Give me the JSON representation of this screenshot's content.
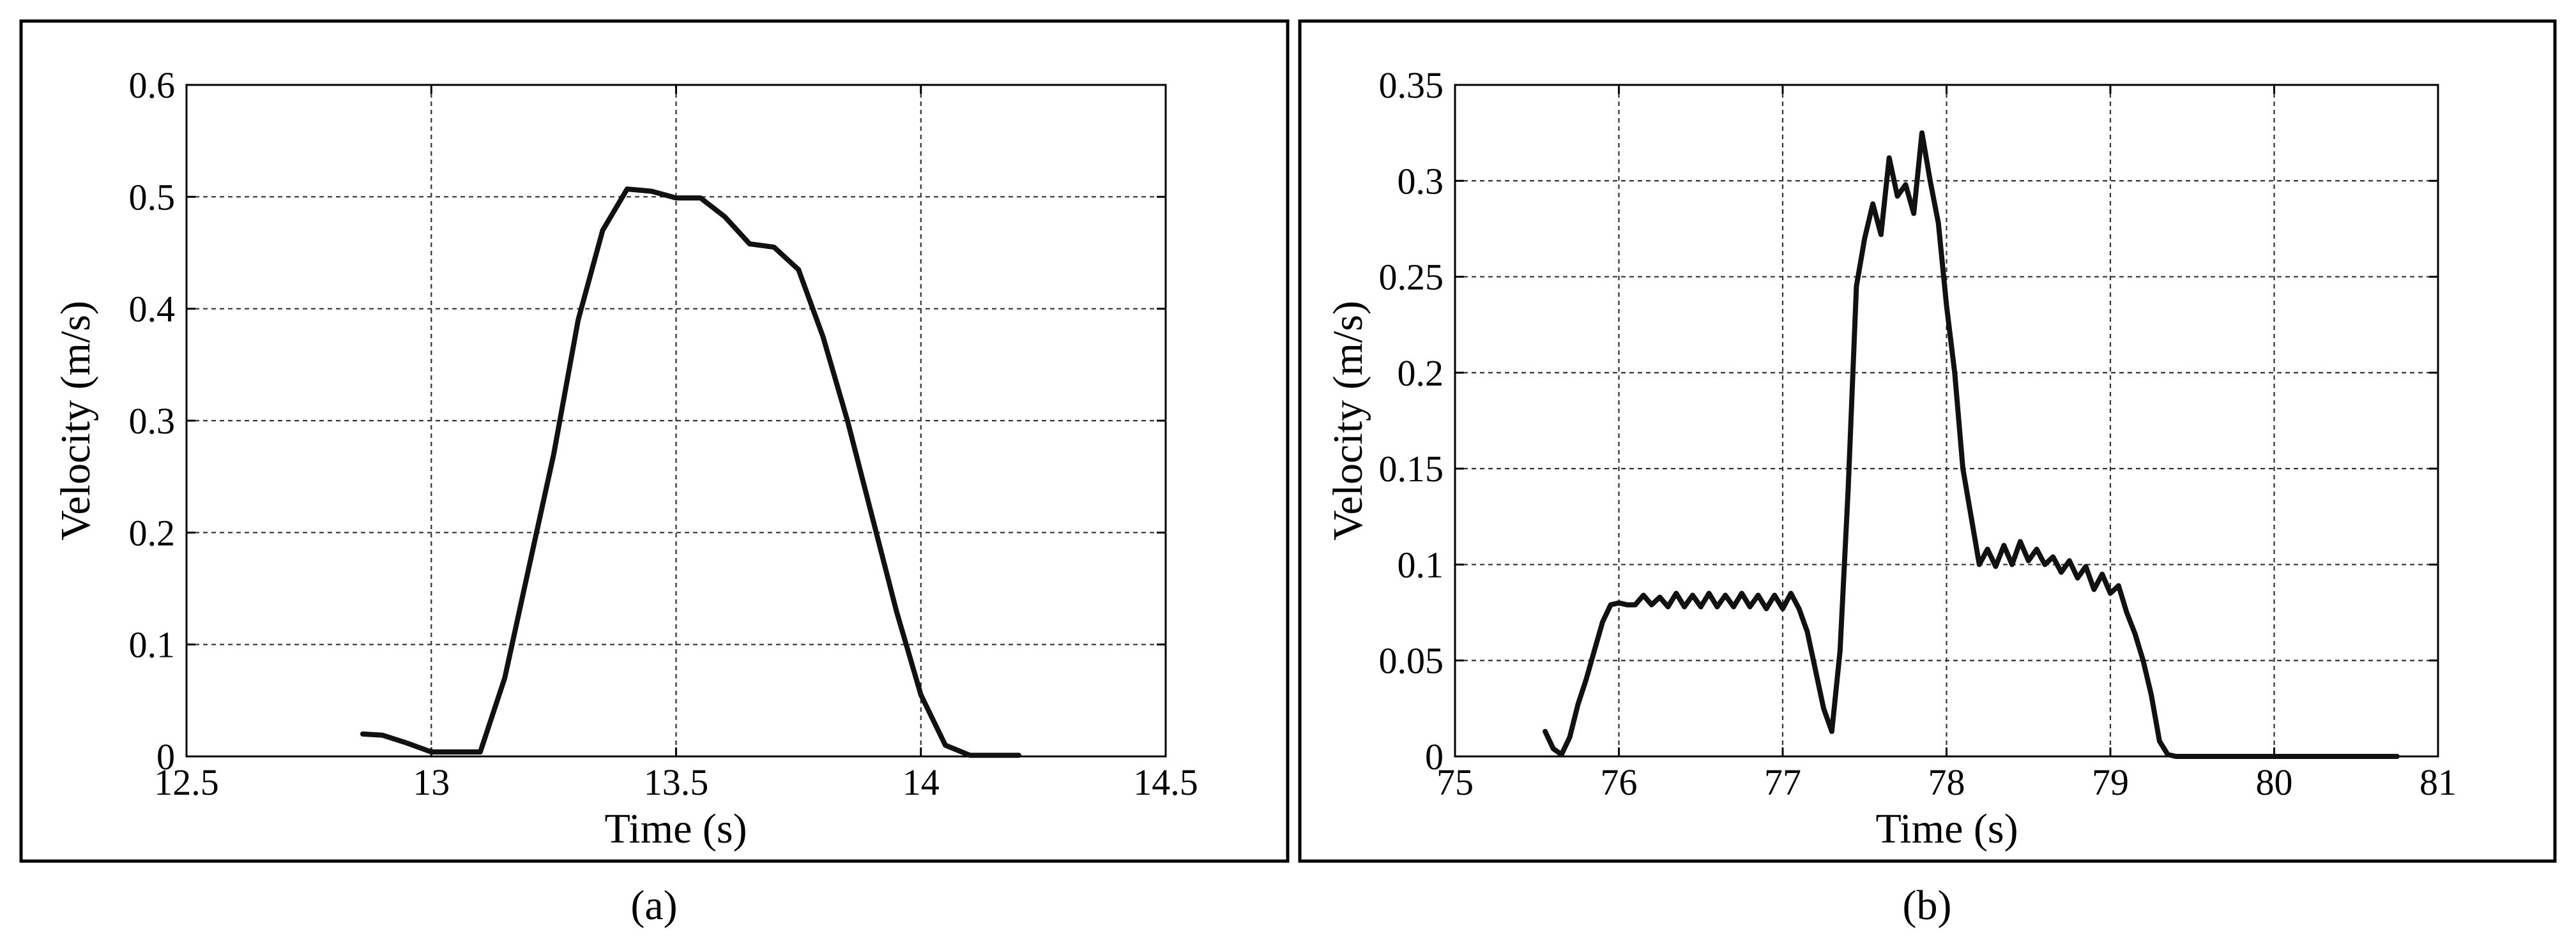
{
  "chart_data": [
    {
      "type": "line",
      "panel_label": "(a)",
      "xlabel": "Time (s)",
      "ylabel": "Velocity (m/s)",
      "xlim": [
        12.5,
        14.5
      ],
      "ylim": [
        0,
        0.6
      ],
      "xticks": [
        12.5,
        13,
        13.5,
        14,
        14.5
      ],
      "xtick_labels": [
        "12.5",
        "13",
        "13.5",
        "14",
        "14.5"
      ],
      "yticks": [
        0,
        0.1,
        0.2,
        0.3,
        0.4,
        0.5,
        0.6
      ],
      "ytick_labels": [
        "0",
        "0.1",
        "0.2",
        "0.3",
        "0.4",
        "0.5",
        "0.6"
      ],
      "grid": true,
      "series": [
        {
          "color": "#111111",
          "x": [
            12.86,
            12.9,
            12.95,
            13.0,
            13.05,
            13.08,
            13.1,
            13.15,
            13.2,
            13.25,
            13.3,
            13.35,
            13.4,
            13.45,
            13.5,
            13.55,
            13.6,
            13.65,
            13.7,
            13.75,
            13.8,
            13.85,
            13.9,
            13.95,
            14.0,
            14.05,
            14.1,
            14.15,
            14.2
          ],
          "y": [
            0.02,
            0.019,
            0.012,
            0.004,
            0.004,
            0.004,
            0.004,
            0.07,
            0.17,
            0.27,
            0.39,
            0.47,
            0.507,
            0.505,
            0.499,
            0.499,
            0.482,
            0.458,
            0.455,
            0.435,
            0.375,
            0.3,
            0.215,
            0.13,
            0.055,
            0.01,
            0.001,
            0.001,
            0.001
          ]
        }
      ]
    },
    {
      "type": "line",
      "panel_label": "(b)",
      "xlabel": "Time (s)",
      "ylabel": "Velocity (m/s)",
      "xlim": [
        75,
        81
      ],
      "ylim": [
        0,
        0.35
      ],
      "xticks": [
        75,
        76,
        77,
        78,
        79,
        80,
        81
      ],
      "xtick_labels": [
        "75",
        "76",
        "77",
        "78",
        "79",
        "80",
        "81"
      ],
      "yticks": [
        0,
        0.05,
        0.1,
        0.15,
        0.2,
        0.25,
        0.3,
        0.35
      ],
      "ytick_labels": [
        "0",
        "0.05",
        "0.1",
        "0.15",
        "0.2",
        "0.25",
        "0.3",
        "0.35"
      ],
      "grid": true,
      "series": [
        {
          "color": "#111111",
          "x": [
            75.55,
            75.6,
            75.65,
            75.7,
            75.75,
            75.8,
            75.85,
            75.9,
            75.95,
            76.0,
            76.05,
            76.1,
            76.15,
            76.2,
            76.25,
            76.3,
            76.35,
            76.4,
            76.45,
            76.5,
            76.55,
            76.6,
            76.65,
            76.7,
            76.75,
            76.8,
            76.85,
            76.9,
            76.95,
            77.0,
            77.05,
            77.1,
            77.15,
            77.2,
            77.25,
            77.3,
            77.35,
            77.4,
            77.45,
            77.5,
            77.55,
            77.6,
            77.65,
            77.7,
            77.75,
            77.8,
            77.85,
            77.9,
            77.95,
            78.0,
            78.05,
            78.1,
            78.15,
            78.2,
            78.25,
            78.3,
            78.35,
            78.4,
            78.45,
            78.5,
            78.55,
            78.6,
            78.65,
            78.7,
            78.75,
            78.8,
            78.85,
            78.9,
            78.95,
            79.0,
            79.05,
            79.1,
            79.15,
            79.2,
            79.25,
            79.3,
            79.35,
            79.4,
            79.45,
            79.5,
            79.6,
            79.8,
            80.0,
            80.5,
            80.75
          ],
          "y": [
            0.013,
            0.004,
            0.001,
            0.01,
            0.027,
            0.04,
            0.055,
            0.07,
            0.079,
            0.08,
            0.079,
            0.079,
            0.084,
            0.079,
            0.083,
            0.078,
            0.085,
            0.078,
            0.084,
            0.078,
            0.085,
            0.078,
            0.084,
            0.078,
            0.085,
            0.078,
            0.084,
            0.077,
            0.084,
            0.077,
            0.085,
            0.077,
            0.065,
            0.045,
            0.025,
            0.013,
            0.055,
            0.14,
            0.245,
            0.27,
            0.288,
            0.272,
            0.312,
            0.292,
            0.298,
            0.283,
            0.325,
            0.3,
            0.278,
            0.235,
            0.2,
            0.15,
            0.125,
            0.1,
            0.108,
            0.099,
            0.11,
            0.1,
            0.112,
            0.102,
            0.108,
            0.1,
            0.104,
            0.096,
            0.102,
            0.093,
            0.099,
            0.087,
            0.095,
            0.085,
            0.089,
            0.075,
            0.064,
            0.05,
            0.032,
            0.008,
            0.001,
            0.0,
            0.0,
            0.0,
            0.0,
            0.0,
            0.0,
            0.0,
            0.0
          ]
        }
      ]
    }
  ]
}
